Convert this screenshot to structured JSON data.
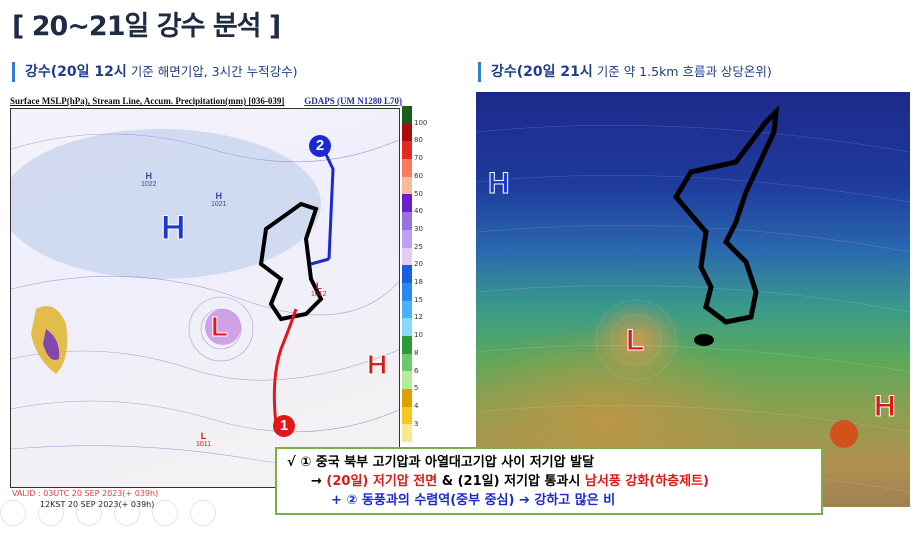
{
  "title": "[ 20~21일 강수 분석 ]",
  "left_panel": {
    "subtitle_bold": "강수(20일 12시",
    "subtitle_thin": " 기준 해면기압, 3시간 누적강수)",
    "map_header": "Surface MSLP(hPa), Stream Line, Accum. Precipitation(mm) [036-039]",
    "model": "GDAPS (UM N1280 L70)",
    "labels": {
      "h_big": "H",
      "h1": "H",
      "h1_val": "1022",
      "h2": "H",
      "h2_val": "1021",
      "l_main": "L",
      "h_east": "H",
      "l_small": "L",
      "l_small_val": "1012",
      "l_south": "L",
      "l_south_val": "1011",
      "marker1": "1",
      "marker2": "2"
    },
    "valid": "VALID : 03UTC 20 SEP 2023(+ 039h)",
    "kst": "12KST 20 SEP 2023(+ 039h)",
    "colorbar": {
      "labels": [
        "100",
        "80",
        "70",
        "60",
        "50",
        "40",
        "30",
        "25",
        "20",
        "18",
        "15",
        "12",
        "10",
        "8",
        "6",
        "5",
        "4",
        "3"
      ],
      "colors": [
        "#1a5e1a",
        "#a80c0c",
        "#e8281e",
        "#f87c5c",
        "#fbb89c",
        "#6a22c8",
        "#9a70e0",
        "#c0a0f0",
        "#e2ccf8",
        "#1560e0",
        "#2a88f0",
        "#4ab2f8",
        "#8ad8fc",
        "#2a9a3a",
        "#6cc86c",
        "#b8ec98",
        "#e0a000",
        "#f8c820",
        "#fce890"
      ]
    }
  },
  "right_panel": {
    "subtitle_bold": "강수(20일 21시",
    "subtitle_thin": " 기준 약 1.5km 흐름과 상당온위)",
    "labels": {
      "h_west": "H",
      "l_main": "L",
      "h_east": "H"
    }
  },
  "summary": {
    "line1": "√ ① 중국 북부 고기압과 아열대고기압 사이 저기압 발달",
    "line2_a": "→ ",
    "line2_b": "(20일) 저기압 전면",
    "line2_c": " & (21일) 저기압 통과시 ",
    "line2_d": "남서풍 강화(하층제트)",
    "line3": "+ ② 동풍과의 수렴역(중부 중심) ➔ 강하고 많은 비"
  },
  "colors": {
    "red": "#e01818",
    "blue": "#1a2ad0",
    "high_blue": "#1a3ad0",
    "title": "#1f2a44"
  }
}
